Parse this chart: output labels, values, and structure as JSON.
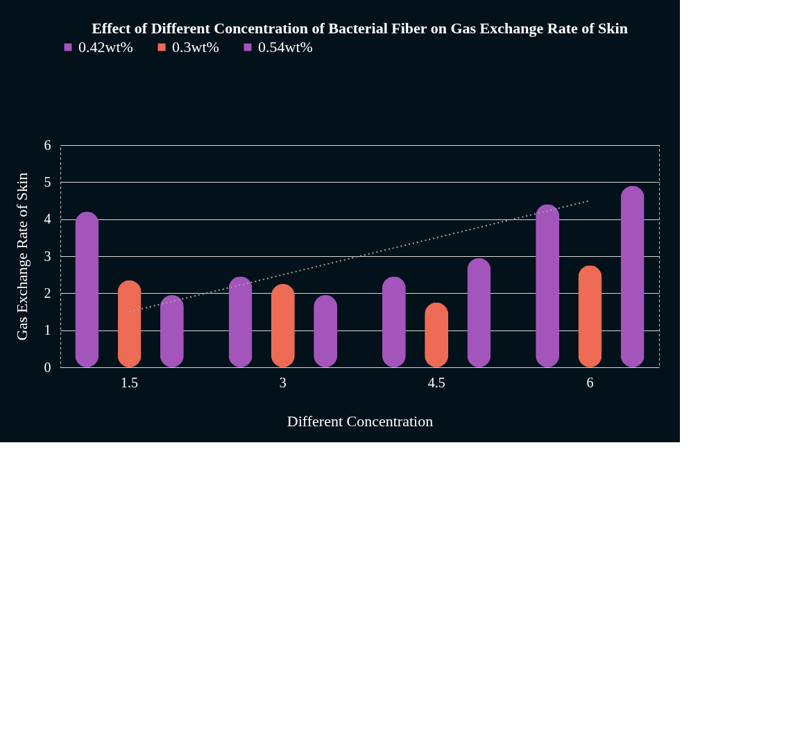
{
  "chart_data": {
    "type": "bar",
    "title": "Effect of Different Concentration of Bacterial Fiber on Gas Exchange Rate of Skin",
    "xlabel": "Different Concentration",
    "ylabel": "Gas Exchange Rate of Skin",
    "categories": [
      "1.5",
      "3",
      "4.5",
      "6"
    ],
    "series": [
      {
        "name": "0.42wt%",
        "color": "#a355bb",
        "values": [
          4.2,
          2.45,
          2.45,
          4.4
        ]
      },
      {
        "name": "0.3wt%",
        "color": "#ee6b55",
        "values": [
          2.35,
          2.25,
          1.75,
          2.75
        ]
      },
      {
        "name": "0.54wt%",
        "color": "#a355bb",
        "values": [
          1.95,
          1.95,
          2.95,
          4.9
        ]
      },
      {
        "type": "line",
        "color": "#a6a6a6",
        "line_style": "dotted",
        "x": [
          "1.5",
          "6"
        ],
        "values": [
          1.5,
          4.5
        ]
      }
    ],
    "ylim": [
      0,
      6
    ],
    "yticks": [
      0,
      1,
      2,
      3,
      4,
      5,
      6
    ],
    "grid": "y",
    "legend": "top"
  }
}
